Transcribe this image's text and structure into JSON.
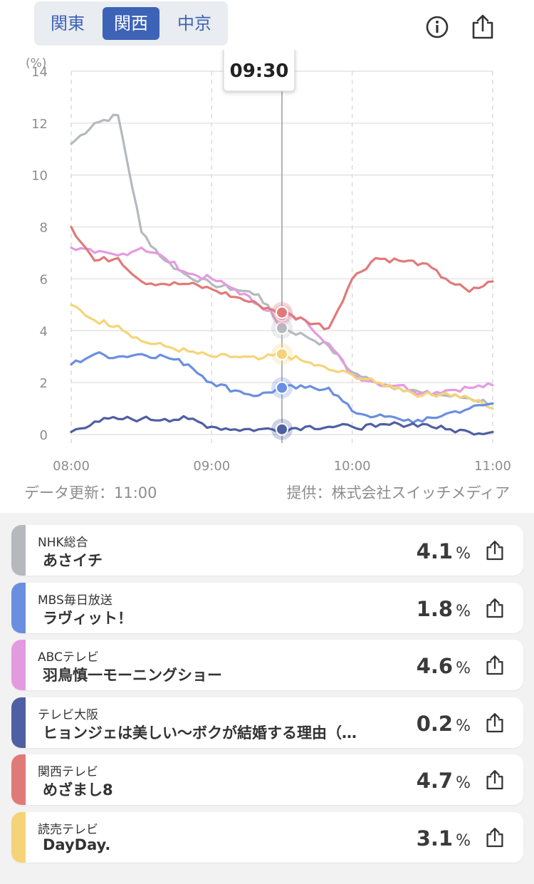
{
  "tabs": [
    {
      "label": "関東",
      "active": false
    },
    {
      "label": "関西",
      "active": true
    },
    {
      "label": "中京",
      "active": false
    }
  ],
  "icons": {
    "info": "info-icon",
    "share": "share-icon"
  },
  "colors": {
    "accent": "#3d63b7",
    "NHK総合": "#b5b9be",
    "MBS毎日放送": "#6a8fe0",
    "ABCテレビ": "#e39be0",
    "テレビ大阪": "#4f5fa3",
    "関西テレビ": "#e07a78",
    "読売テレビ": "#f5d479"
  },
  "tooltip": "09:30",
  "update_text": "データ更新：11:00",
  "source_text": "提供：株式会社スイッチメディア",
  "chart_data": {
    "type": "line",
    "ylabel": "(%)",
    "ylim": [
      0,
      14
    ],
    "yticks": [
      "0",
      "2",
      "4",
      "6",
      "8",
      "10",
      "12",
      "14"
    ],
    "xticks": [
      "08:00",
      "09:00",
      "10:00",
      "11:00"
    ],
    "x": [
      "08:00",
      "08:10",
      "08:20",
      "08:30",
      "08:40",
      "08:50",
      "09:00",
      "09:10",
      "09:20",
      "09:30",
      "09:40",
      "09:50",
      "10:00",
      "10:10",
      "10:20",
      "10:30",
      "10:40",
      "10:50",
      "11:00"
    ],
    "cursor_x": "09:30",
    "grid": true,
    "series": [
      {
        "name": "NHK総合",
        "values": [
          11.2,
          12.0,
          12.3,
          7.8,
          6.7,
          6.1,
          5.8,
          5.6,
          5.4,
          4.1,
          3.8,
          3.4,
          2.4,
          2.0,
          1.8,
          1.6,
          1.5,
          1.4,
          1.2
        ]
      },
      {
        "name": "MBS毎日放送",
        "values": [
          2.7,
          3.1,
          3.0,
          3.1,
          3.0,
          2.7,
          2.0,
          1.7,
          1.5,
          1.8,
          1.8,
          1.8,
          0.9,
          0.7,
          0.6,
          0.5,
          0.8,
          1.0,
          1.2
        ]
      },
      {
        "name": "ABCテレビ",
        "values": [
          7.2,
          7.0,
          6.9,
          7.2,
          6.8,
          6.2,
          6.0,
          5.6,
          5.0,
          4.6,
          4.4,
          3.5,
          2.3,
          2.0,
          1.9,
          1.6,
          1.7,
          1.8,
          1.9
        ]
      },
      {
        "name": "テレビ大阪",
        "values": [
          0.1,
          0.5,
          0.6,
          0.6,
          0.6,
          0.6,
          0.3,
          0.2,
          0.2,
          0.2,
          0.3,
          0.3,
          0.3,
          0.3,
          0.4,
          0.4,
          0.2,
          0.1,
          0.1
        ]
      },
      {
        "name": "関西テレビ",
        "values": [
          8.0,
          6.7,
          6.8,
          5.9,
          5.8,
          5.8,
          5.6,
          5.3,
          5.0,
          4.7,
          4.4,
          4.1,
          6.0,
          6.8,
          6.7,
          6.6,
          6.0,
          5.5,
          5.9
        ]
      },
      {
        "name": "読売テレビ",
        "values": [
          5.0,
          4.4,
          4.2,
          3.6,
          3.4,
          3.2,
          3.0,
          3.0,
          2.9,
          3.1,
          2.8,
          2.5,
          2.3,
          2.0,
          1.8,
          1.5,
          1.6,
          1.4,
          1.0
        ]
      }
    ]
  },
  "programs": [
    {
      "station": "NHK総合",
      "title": "あさイチ",
      "rating": "4.1",
      "unit": "%"
    },
    {
      "station": "MBS毎日放送",
      "title": "ラヴィット！",
      "rating": "1.8",
      "unit": "%"
    },
    {
      "station": "ABCテレビ",
      "title": "羽鳥慎一モーニングショー",
      "rating": "4.6",
      "unit": "%"
    },
    {
      "station": "テレビ大阪",
      "title": "ヒョンジェは美しい～ボクが結婚する理由（…",
      "rating": "0.2",
      "unit": "%"
    },
    {
      "station": "関西テレビ",
      "title": "めざまし8",
      "rating": "4.7",
      "unit": "%"
    },
    {
      "station": "読売テレビ",
      "title": "DayDay.",
      "rating": "3.1",
      "unit": "%"
    }
  ]
}
